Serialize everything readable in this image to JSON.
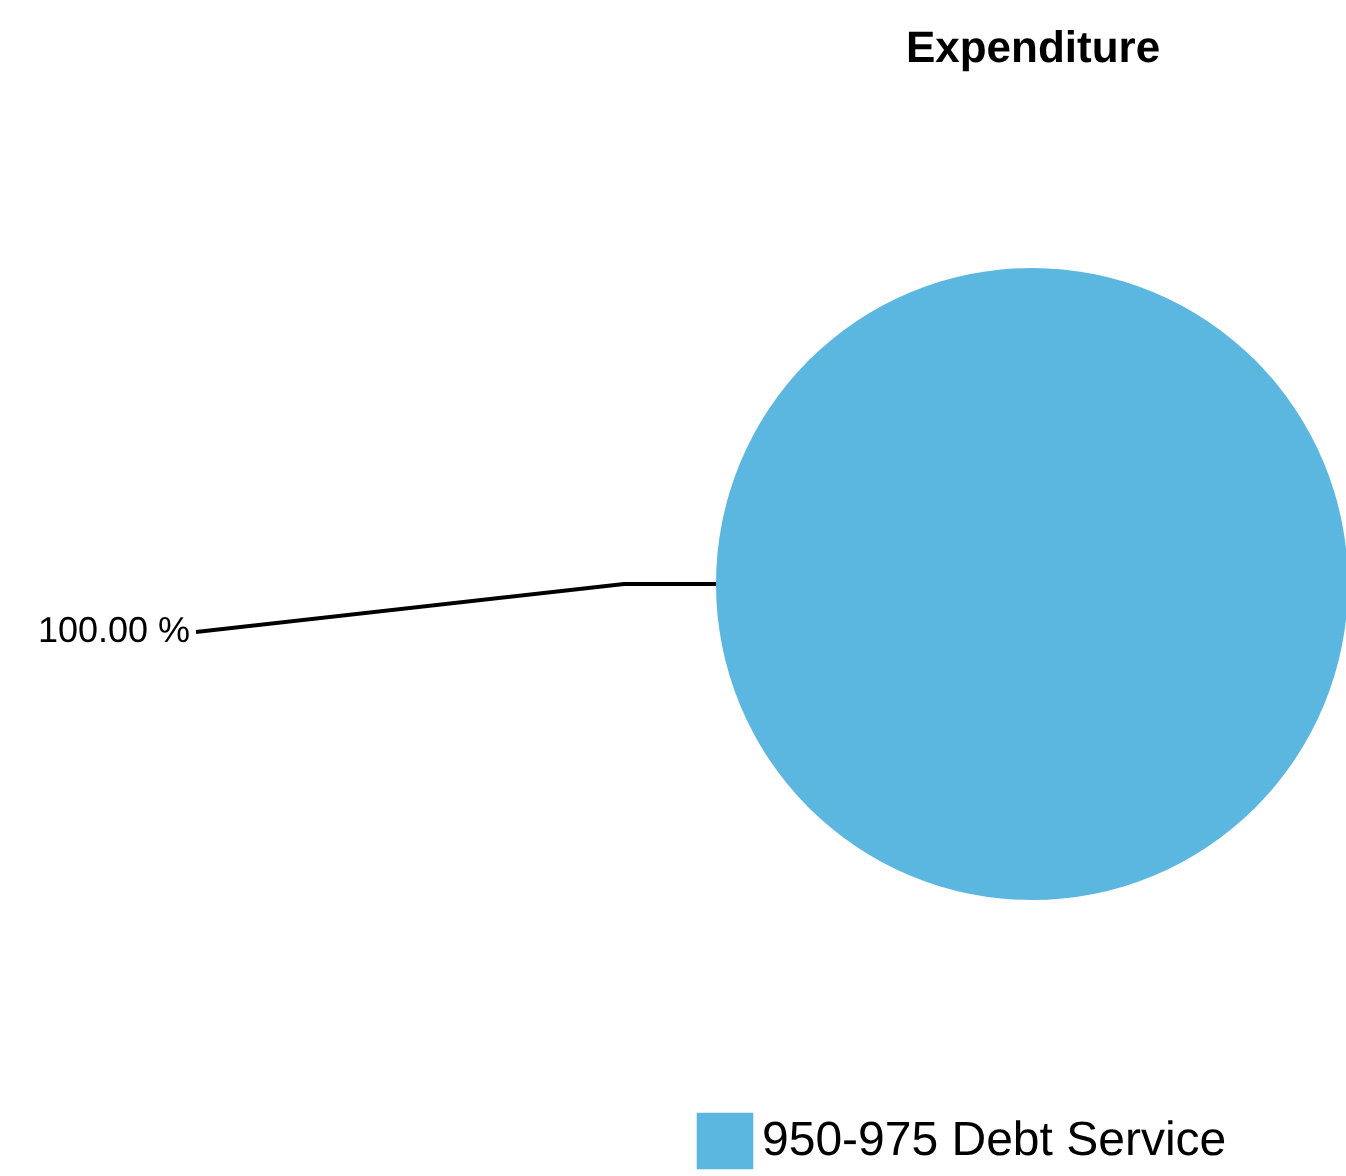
{
  "chart_data": {
    "type": "pie",
    "title": "Expenditure",
    "categories": [
      "950-975 Debt Service"
    ],
    "values": [
      100
    ],
    "colors": [
      "#5bb7e0"
    ],
    "value_labels": [
      "100.00 %"
    ],
    "legend": "bottom"
  }
}
